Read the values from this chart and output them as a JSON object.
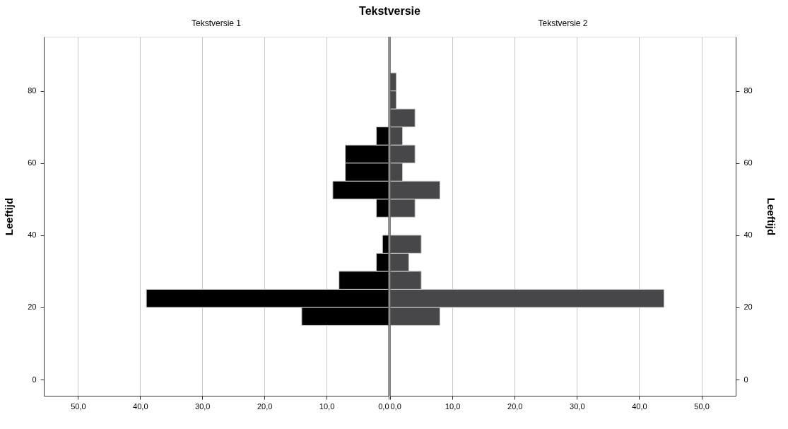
{
  "chart_data": [
    {
      "type": "histogram",
      "orientation": "horizontal",
      "title": "Tekstversie 1",
      "annotations": [
        "Tekstversie"
      ],
      "ylabel": "Leeftijd",
      "bins": [
        15,
        20,
        25,
        30,
        35,
        40,
        45,
        50,
        55,
        60,
        65,
        70,
        75,
        80,
        85
      ],
      "values": [
        14,
        39,
        8,
        2,
        1,
        0,
        2,
        9,
        7,
        7,
        2,
        0,
        0,
        0
      ],
      "color": "#000000",
      "xlim": [
        55.5,
        0
      ],
      "xticks": [
        {
          "value": 50,
          "label": "50,0"
        },
        {
          "value": 40,
          "label": "40,0"
        },
        {
          "value": 30,
          "label": "30,0"
        },
        {
          "value": 20,
          "label": "20,0"
        },
        {
          "value": 10,
          "label": "10,0"
        },
        {
          "value": 0,
          "label": "0,0"
        }
      ],
      "ylim": [
        -4.5,
        95
      ],
      "yticks": [
        0,
        20,
        40,
        60,
        80
      ],
      "ref_lines": [
        {
          "axis": "x",
          "value": 0,
          "color": "#333333"
        }
      ],
      "grid": "x",
      "legend": false
    },
    {
      "type": "histogram",
      "orientation": "horizontal",
      "title": "Tekstversie 2",
      "ylabel": "Leeftijd",
      "bins": [
        15,
        20,
        25,
        30,
        35,
        40,
        45,
        50,
        55,
        60,
        65,
        70,
        75,
        80,
        85
      ],
      "values": [
        8,
        44,
        5,
        3,
        5,
        0,
        4,
        8,
        2,
        4,
        2,
        4,
        1,
        1
      ],
      "color": "#474749",
      "xlim": [
        0,
        55.5
      ],
      "xticks": [
        {
          "value": 0,
          "label": "0,0"
        },
        {
          "value": 10,
          "label": "10,0"
        },
        {
          "value": 20,
          "label": "20,0"
        },
        {
          "value": 30,
          "label": "30,0"
        },
        {
          "value": 40,
          "label": "40,0"
        },
        {
          "value": 50,
          "label": "50,0"
        }
      ],
      "ylim": [
        -4.5,
        95
      ],
      "yticks": [
        0,
        20,
        40,
        60,
        80
      ],
      "ref_lines": [
        {
          "axis": "x",
          "value": 0,
          "color": "#333333"
        }
      ],
      "grid": "x",
      "legend": false
    }
  ]
}
